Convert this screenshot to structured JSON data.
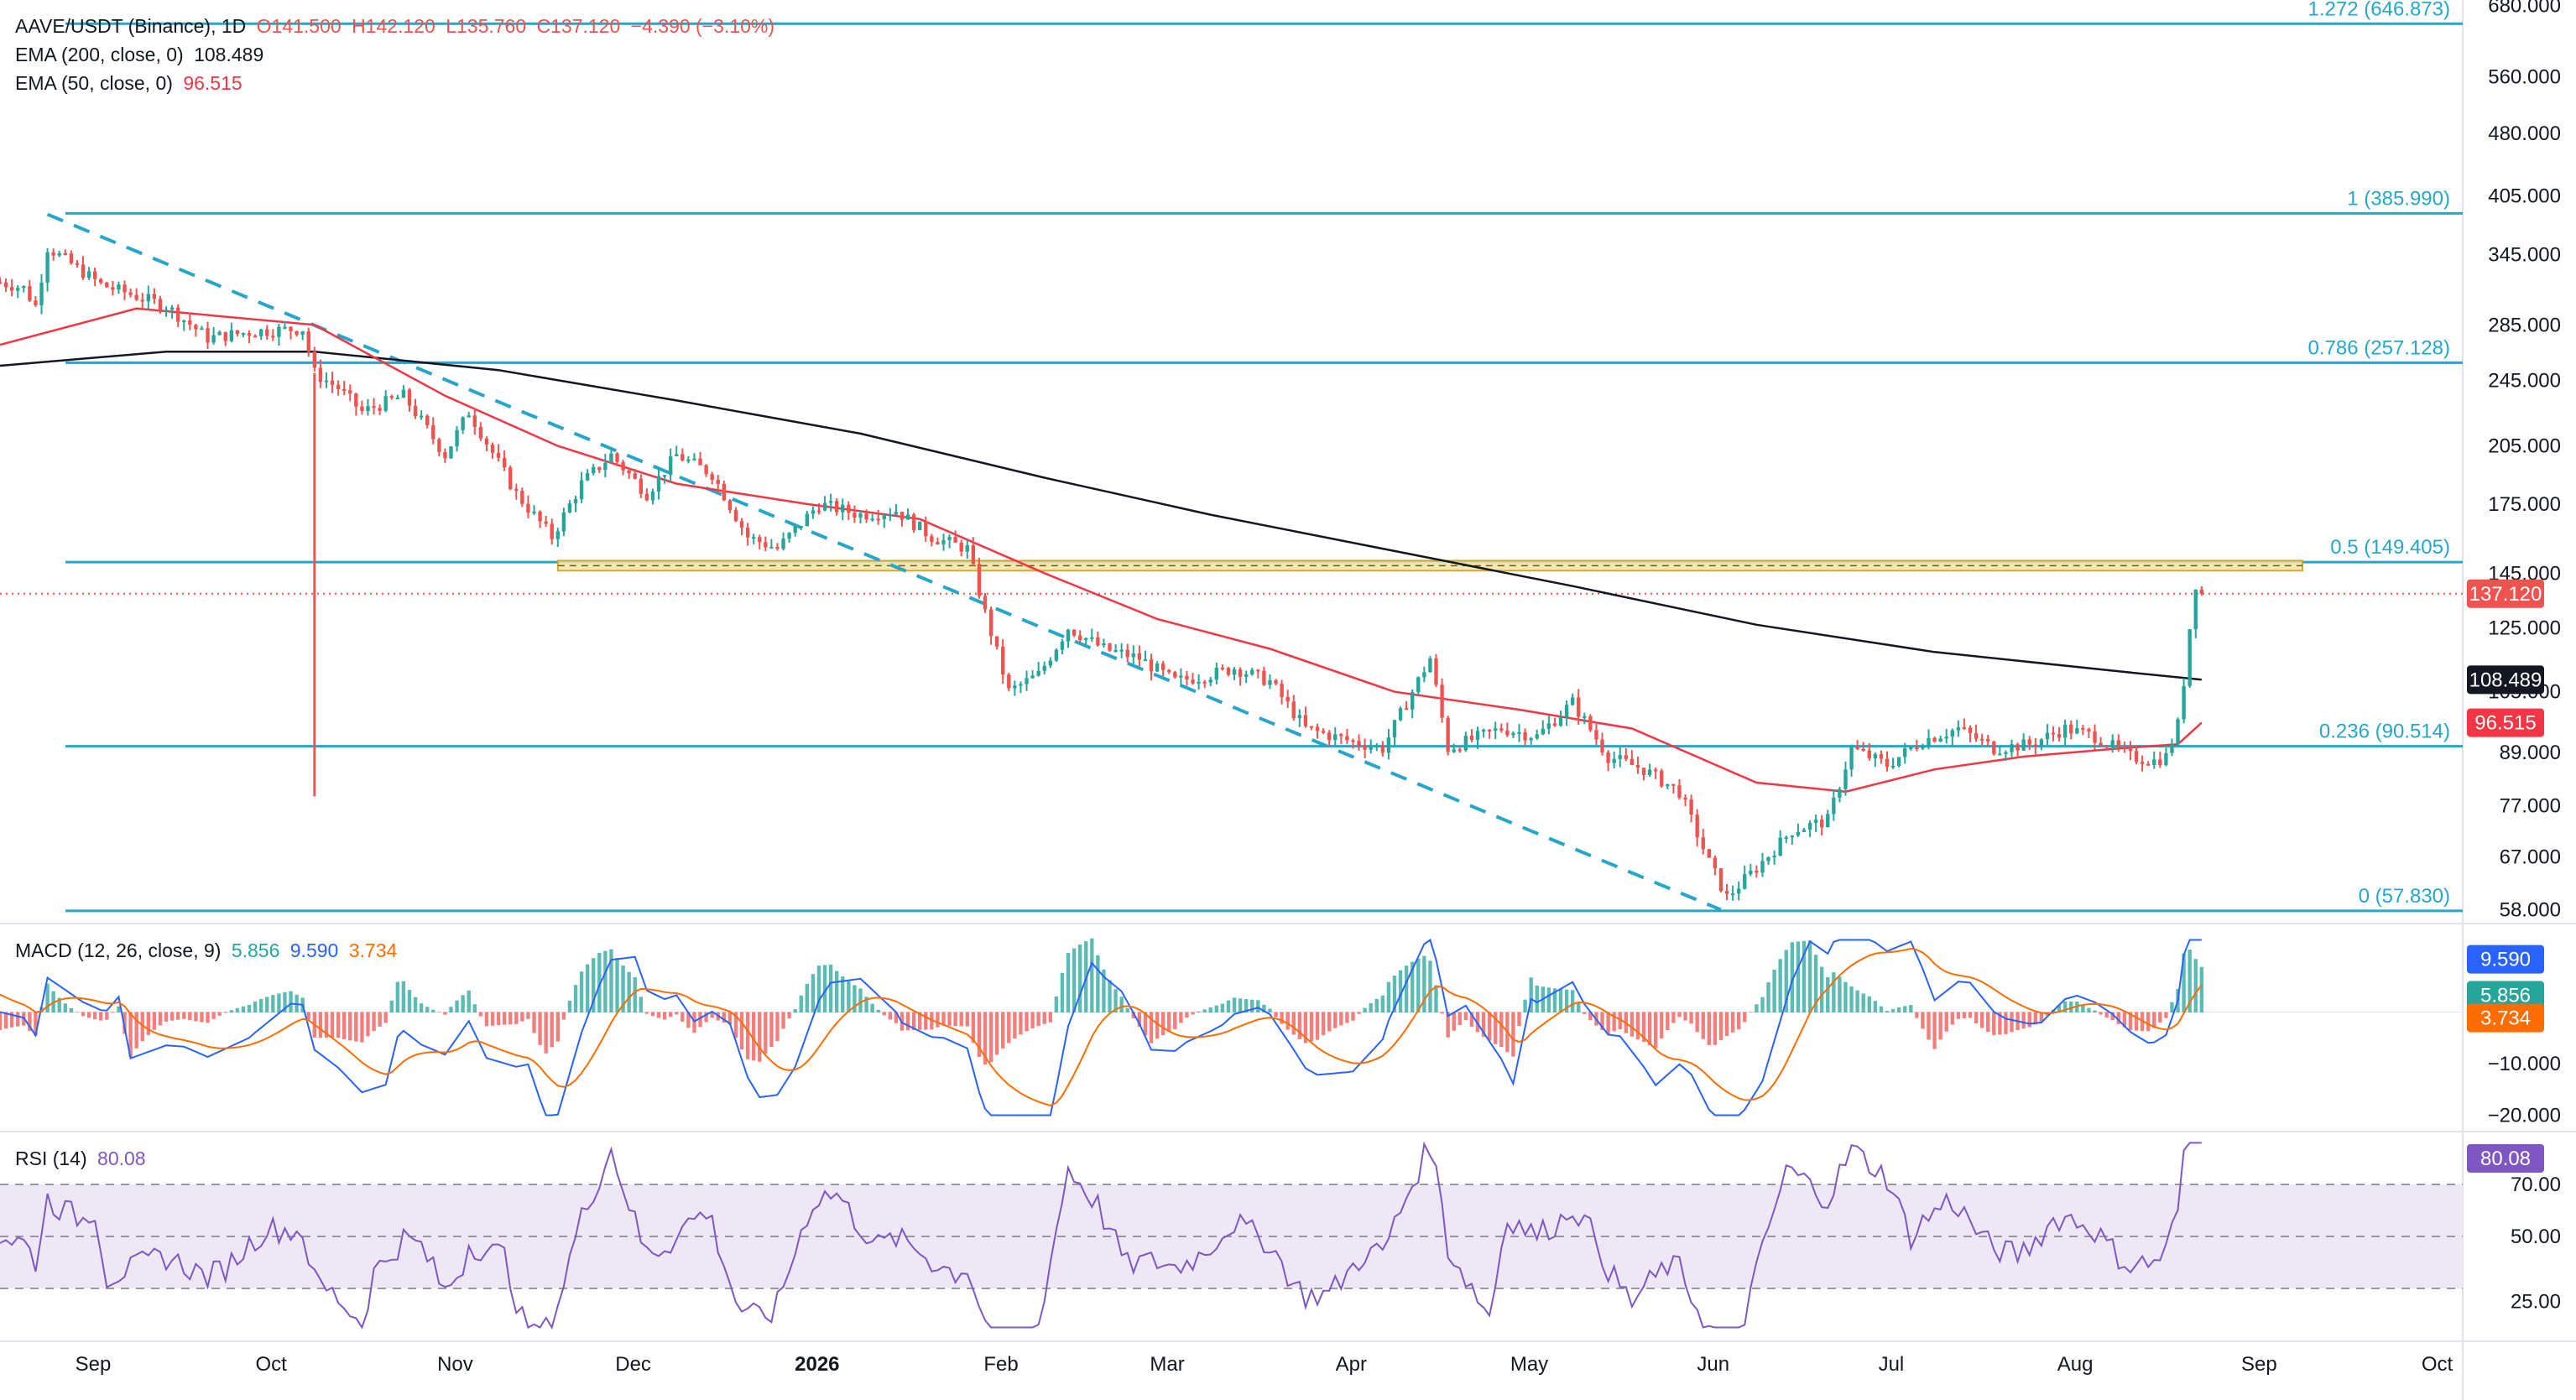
{
  "header": {
    "symbol": "AAVE/USDT (Binance), 1D",
    "open": "O141.500",
    "high": "H142.120",
    "low": "L135.760",
    "close": "C137.120",
    "change": "−4.390 (−3.10%)",
    "ema200_label": "EMA (200, close, 0)",
    "ema200_value": "108.489",
    "ema50_label": "EMA (50, close, 0)",
    "ema50_value": "96.515"
  },
  "macd_header": {
    "label": "MACD (12, 26, close, 9)",
    "hist": "5.856",
    "macd": "9.590",
    "signal": "3.734"
  },
  "rsi_header": {
    "label": "RSI (14)",
    "value": "80.08"
  },
  "colors": {
    "up": "#26a69a",
    "down": "#ef5350",
    "ema50": "#f23645",
    "ema200": "#131722",
    "fib": "#26a6c8",
    "macd": "#2962ff",
    "signal": "#ff6d00",
    "rsi": "#7e57c2",
    "rsi_band": "#ede7f6",
    "zone": "#f5e6a8"
  },
  "chart_data": {
    "type": "candlestick",
    "x_ticks": [
      "Sep",
      "Oct",
      "Nov",
      "Dec",
      "2026",
      "Feb",
      "Mar",
      "Apr",
      "May",
      "Jun",
      "Jul",
      "Aug",
      "Sep",
      "Oct"
    ],
    "x_range": [
      "2025-08-18",
      "2026-10-07"
    ],
    "y_scale": "log",
    "y_ticks": [
      "680.000",
      "560.000",
      "480.000",
      "405.000",
      "345.000",
      "285.000",
      "245.000",
      "205.000",
      "175.000",
      "145.000",
      "125.000",
      "105.000",
      "89.000",
      "77.000",
      "67.000",
      "58.000"
    ],
    "ylim": [
      56,
      690
    ],
    "last_price": "137.120",
    "fib_levels": [
      {
        "level": "1.272",
        "value": 646.873,
        "label": "1.272 (646.873)"
      },
      {
        "level": "1",
        "value": 385.99,
        "label": "1 (385.990)"
      },
      {
        "level": "0.786",
        "value": 257.128,
        "label": "0.786 (257.128)"
      },
      {
        "level": "0.5",
        "value": 149.405,
        "label": "0.5 (149.405)"
      },
      {
        "level": "0.236",
        "value": 90.514,
        "label": "0.236 (90.514)"
      },
      {
        "level": "0",
        "value": 57.83,
        "label": "0 (57.830)"
      }
    ],
    "resistance_zone": {
      "from": "2025-11-20",
      "to": "2026-09-10",
      "low": 146,
      "high": 150
    },
    "trendline": {
      "start": [
        "2025-08-26",
        385
      ],
      "end": [
        "2026-06-04",
        58
      ]
    },
    "price_path": [
      [
        "2025-08-18",
        320
      ],
      [
        "2025-08-22",
        315
      ],
      [
        "2025-08-24",
        300
      ],
      [
        "2025-08-26",
        352
      ],
      [
        "2025-09-04",
        318
      ],
      [
        "2025-09-15",
        300
      ],
      [
        "2025-09-22",
        275
      ],
      [
        "2025-09-30",
        280
      ],
      [
        "2025-10-08",
        282
      ],
      [
        "2025-10-10",
        250
      ],
      [
        "2025-10-14",
        240
      ],
      [
        "2025-10-18",
        225
      ],
      [
        "2025-10-25",
        235
      ],
      [
        "2025-11-01",
        200
      ],
      [
        "2025-11-05",
        225
      ],
      [
        "2025-11-13",
        180
      ],
      [
        "2025-11-19",
        160
      ],
      [
        "2025-11-24",
        185
      ],
      [
        "2025-11-29",
        200
      ],
      [
        "2025-12-05",
        180
      ],
      [
        "2025-12-10",
        200
      ],
      [
        "2025-12-16",
        190
      ],
      [
        "2025-12-22",
        160
      ],
      [
        "2025-12-27",
        155
      ],
      [
        "2026-01-03",
        175
      ],
      [
        "2026-01-10",
        170
      ],
      [
        "2026-01-16",
        172
      ],
      [
        "2026-01-22",
        160
      ],
      [
        "2026-01-28",
        155
      ],
      [
        "2026-01-31",
        130
      ],
      [
        "2026-02-04",
        105
      ],
      [
        "2026-02-09",
        110
      ],
      [
        "2026-02-14",
        125
      ],
      [
        "2026-02-20",
        118
      ],
      [
        "2026-02-26",
        115
      ],
      [
        "2026-03-04",
        108
      ],
      [
        "2026-03-10",
        110
      ],
      [
        "2026-03-14",
        112
      ],
      [
        "2026-03-20",
        108
      ],
      [
        "2026-03-26",
        95
      ],
      [
        "2026-04-02",
        92
      ],
      [
        "2026-04-08",
        90
      ],
      [
        "2026-04-13",
        105
      ],
      [
        "2026-04-16",
        115
      ],
      [
        "2026-04-19",
        90
      ],
      [
        "2026-04-28",
        95
      ],
      [
        "2026-05-04",
        93
      ],
      [
        "2026-05-10",
        102
      ],
      [
        "2026-05-16",
        88
      ],
      [
        "2026-05-22",
        85
      ],
      [
        "2026-05-28",
        80
      ],
      [
        "2026-06-02",
        66
      ],
      [
        "2026-06-05",
        60
      ],
      [
        "2026-06-10",
        65
      ],
      [
        "2026-06-16",
        72
      ],
      [
        "2026-06-22",
        74
      ],
      [
        "2026-06-26",
        90
      ],
      [
        "2026-07-02",
        86
      ],
      [
        "2026-07-08",
        92
      ],
      [
        "2026-07-14",
        95
      ],
      [
        "2026-07-20",
        90
      ],
      [
        "2026-07-26",
        91
      ],
      [
        "2026-08-01",
        95
      ],
      [
        "2026-08-06",
        93
      ],
      [
        "2026-08-12",
        88
      ],
      [
        "2026-08-16",
        87
      ],
      [
        "2026-08-18",
        88
      ],
      [
        "2026-08-20",
        96
      ],
      [
        "2026-08-21",
        108
      ],
      [
        "2026-08-22",
        125
      ],
      [
        "2026-08-23",
        141
      ],
      [
        "2026-08-24",
        137
      ]
    ],
    "spikes": [
      {
        "date": "2025-10-10",
        "low": 79
      }
    ],
    "ema200": [
      [
        "2025-08-18",
        255
      ],
      [
        "2025-09-15",
        265
      ],
      [
        "2025-10-10",
        265
      ],
      [
        "2025-11-10",
        252
      ],
      [
        "2025-12-10",
        232
      ],
      [
        "2026-01-10",
        212
      ],
      [
        "2026-02-10",
        188
      ],
      [
        "2026-03-10",
        170
      ],
      [
        "2026-04-10",
        154
      ],
      [
        "2026-05-10",
        140
      ],
      [
        "2026-06-10",
        126
      ],
      [
        "2026-07-10",
        117
      ],
      [
        "2026-08-10",
        111
      ],
      [
        "2026-08-24",
        108.489
      ]
    ],
    "ema50": [
      [
        "2025-08-18",
        270
      ],
      [
        "2025-09-10",
        298
      ],
      [
        "2025-10-10",
        285
      ],
      [
        "2025-11-01",
        235
      ],
      [
        "2025-11-20",
        205
      ],
      [
        "2025-12-10",
        185
      ],
      [
        "2026-01-01",
        175
      ],
      [
        "2026-01-20",
        168
      ],
      [
        "2026-02-10",
        145
      ],
      [
        "2026-03-01",
        128
      ],
      [
        "2026-03-20",
        118
      ],
      [
        "2026-04-10",
        105
      ],
      [
        "2026-05-01",
        100
      ],
      [
        "2026-05-20",
        95
      ],
      [
        "2026-06-10",
        82
      ],
      [
        "2026-06-25",
        80
      ],
      [
        "2026-07-10",
        85
      ],
      [
        "2026-07-25",
        88
      ],
      [
        "2026-08-10",
        90
      ],
      [
        "2026-08-20",
        91
      ],
      [
        "2026-08-24",
        96.515
      ]
    ],
    "macd": {
      "y_ticks": [
        "−10.000",
        "−20.000"
      ],
      "ylim": [
        -23,
        17
      ],
      "values": {
        "histogram": "5.856",
        "macd": "9.590",
        "signal": "3.734"
      }
    },
    "rsi": {
      "y_ticks": [
        "70.00",
        "50.00",
        "25.00"
      ],
      "ylim": [
        10,
        90
      ],
      "band": [
        30,
        70
      ],
      "value": "80.08"
    }
  }
}
